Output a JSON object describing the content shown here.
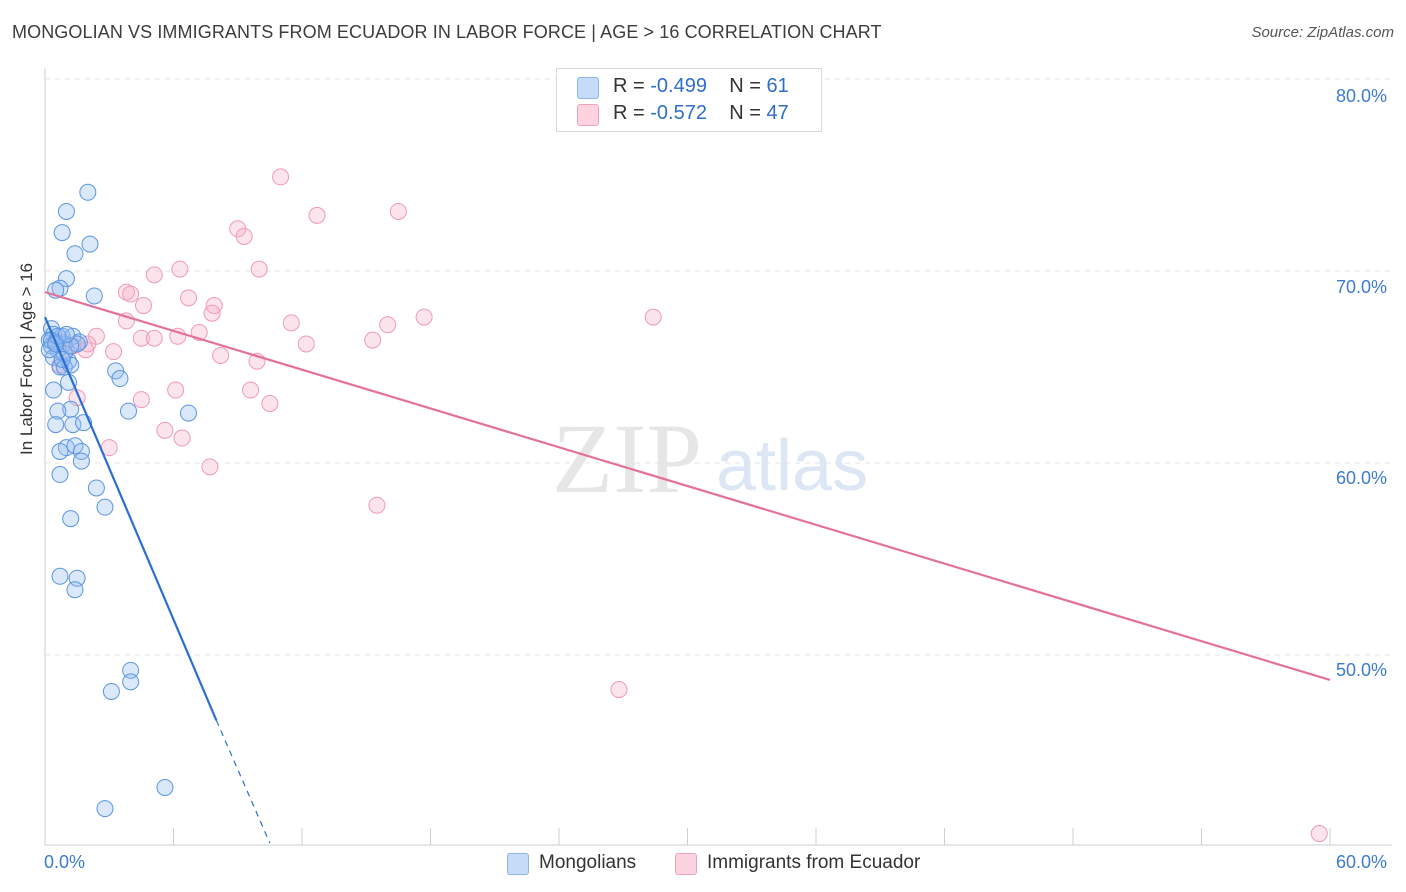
{
  "title": "MONGOLIAN VS IMMIGRANTS FROM ECUADOR IN LABOR FORCE | AGE > 16 CORRELATION CHART",
  "source": "Source: ZipAtlas.com",
  "watermark": {
    "zip": "ZIP",
    "atlas": "atlas"
  },
  "legend_stats": [
    {
      "r_label": "R =",
      "r_value": "-0.499",
      "n_label": "N =",
      "n_value": "61",
      "color": "#a9c8f0"
    },
    {
      "r_label": "R =",
      "r_value": "-0.572",
      "n_label": "N =",
      "n_value": "47",
      "color": "#f6bfd0"
    }
  ],
  "chart_data": {
    "type": "scatter",
    "ylabel": "In Labor Force | Age > 16",
    "xlim": [
      0,
      60
    ],
    "ylim": [
      40,
      80
    ],
    "x_ticks": [
      "0.0%",
      "60.0%"
    ],
    "y_ticks": [
      "80.0%",
      "70.0%",
      "60.0%",
      "50.0%"
    ],
    "y_tick_values": [
      80,
      70,
      60,
      50
    ],
    "colors": {
      "blue": "#5a95e0",
      "blue_line": "#2b6fd1",
      "pink": "#ef9ab6",
      "pink_line": "#e5709a"
    },
    "series": [
      {
        "name": "Mongolians",
        "points": [
          [
            2.0,
            74.1
          ],
          [
            1.0,
            73.1
          ],
          [
            0.8,
            72.0
          ],
          [
            2.1,
            71.4
          ],
          [
            1.4,
            70.9
          ],
          [
            1.0,
            69.6
          ],
          [
            0.7,
            69.1
          ],
          [
            0.5,
            69.0
          ],
          [
            2.3,
            68.7
          ],
          [
            0.3,
            67.0
          ],
          [
            0.4,
            66.7
          ],
          [
            0.8,
            66.6
          ],
          [
            1.3,
            66.6
          ],
          [
            0.2,
            66.4
          ],
          [
            0.5,
            66.3
          ],
          [
            0.9,
            66.2
          ],
          [
            1.6,
            66.3
          ],
          [
            0.3,
            66.1
          ],
          [
            0.6,
            65.9
          ],
          [
            0.4,
            65.5
          ],
          [
            1.1,
            65.3
          ],
          [
            0.7,
            65.0
          ],
          [
            0.9,
            65.0
          ],
          [
            1.2,
            65.1
          ],
          [
            3.3,
            64.8
          ],
          [
            3.5,
            64.4
          ],
          [
            1.1,
            64.2
          ],
          [
            0.4,
            63.8
          ],
          [
            1.2,
            62.8
          ],
          [
            0.6,
            62.7
          ],
          [
            3.9,
            62.7
          ],
          [
            6.7,
            62.6
          ],
          [
            0.5,
            62.0
          ],
          [
            1.3,
            62.0
          ],
          [
            1.8,
            62.1
          ],
          [
            1.0,
            60.8
          ],
          [
            1.4,
            60.9
          ],
          [
            0.7,
            60.6
          ],
          [
            1.7,
            60.6
          ],
          [
            1.7,
            60.1
          ],
          [
            0.7,
            59.4
          ],
          [
            2.4,
            58.7
          ],
          [
            2.8,
            57.7
          ],
          [
            1.2,
            57.1
          ],
          [
            0.7,
            54.1
          ],
          [
            1.5,
            54.0
          ],
          [
            1.4,
            53.4
          ],
          [
            4.0,
            49.2
          ],
          [
            4.0,
            48.6
          ],
          [
            3.1,
            48.1
          ],
          [
            5.6,
            43.1
          ],
          [
            2.8,
            42.0
          ],
          [
            0.3,
            66.4
          ],
          [
            0.6,
            66.6
          ],
          [
            1.5,
            66.2
          ],
          [
            0.9,
            65.7
          ],
          [
            0.2,
            65.9
          ],
          [
            1.2,
            66.1
          ],
          [
            0.8,
            65.4
          ],
          [
            0.5,
            66.2
          ],
          [
            1.0,
            66.7
          ]
        ],
        "trend": {
          "x0": 0,
          "y0": 67.6,
          "x1": 8.0,
          "y1": 46.6,
          "dash_x1": 10.5,
          "dash_y1": 40.2
        }
      },
      {
        "name": "Immigrants from Ecuador",
        "points": [
          [
            11.0,
            74.9
          ],
          [
            12.7,
            72.9
          ],
          [
            16.5,
            73.1
          ],
          [
            9.0,
            72.2
          ],
          [
            9.3,
            71.8
          ],
          [
            6.3,
            70.1
          ],
          [
            10.0,
            70.1
          ],
          [
            5.1,
            69.8
          ],
          [
            3.8,
            68.9
          ],
          [
            4.0,
            68.8
          ],
          [
            6.7,
            68.6
          ],
          [
            7.9,
            68.2
          ],
          [
            4.6,
            68.2
          ],
          [
            7.8,
            67.8
          ],
          [
            17.7,
            67.6
          ],
          [
            28.4,
            67.6
          ],
          [
            11.5,
            67.3
          ],
          [
            16.0,
            67.2
          ],
          [
            3.8,
            67.4
          ],
          [
            7.2,
            66.8
          ],
          [
            2.4,
            66.6
          ],
          [
            6.2,
            66.6
          ],
          [
            4.5,
            66.5
          ],
          [
            5.1,
            66.5
          ],
          [
            12.2,
            66.2
          ],
          [
            15.3,
            66.4
          ],
          [
            2.0,
            66.2
          ],
          [
            3.2,
            65.8
          ],
          [
            1.9,
            65.9
          ],
          [
            1.3,
            66.1
          ],
          [
            8.2,
            65.6
          ],
          [
            9.9,
            65.3
          ],
          [
            1.0,
            65.9
          ],
          [
            0.7,
            65.1
          ],
          [
            6.1,
            63.8
          ],
          [
            9.6,
            63.8
          ],
          [
            4.5,
            63.3
          ],
          [
            1.5,
            63.4
          ],
          [
            10.5,
            63.1
          ],
          [
            5.6,
            61.7
          ],
          [
            6.4,
            61.3
          ],
          [
            3.0,
            60.8
          ],
          [
            7.7,
            59.8
          ],
          [
            15.5,
            57.8
          ],
          [
            26.8,
            48.2
          ],
          [
            59.5,
            40.7
          ],
          [
            0.9,
            66.3
          ]
        ],
        "trend": {
          "x0": 0,
          "y0": 68.9,
          "x1": 60,
          "y1": 48.7
        }
      }
    ]
  }
}
